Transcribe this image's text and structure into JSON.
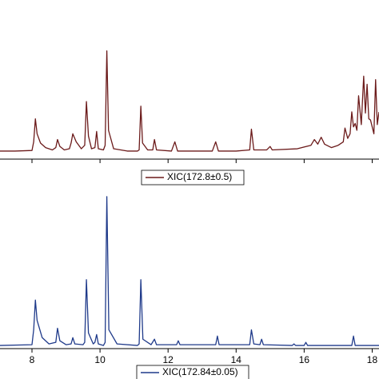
{
  "chart_data": [
    {
      "type": "line",
      "xlim": [
        7.06,
        18.2
      ],
      "ylim": [
        0,
        100
      ],
      "xticks": [
        8,
        10,
        12,
        14,
        16,
        18
      ],
      "tick_labels": false,
      "legend": "bottom",
      "series": [
        {
          "name": "XIC(172.8±0.5)",
          "color": "#6b1a1a",
          "x": [
            7.06,
            7.5,
            8.0,
            8.05,
            8.1,
            8.15,
            8.25,
            8.4,
            8.6,
            8.7,
            8.75,
            8.82,
            8.95,
            9.1,
            9.15,
            9.2,
            9.3,
            9.45,
            9.55,
            9.6,
            9.66,
            9.75,
            9.85,
            9.9,
            9.95,
            10.1,
            10.15,
            10.2,
            10.25,
            10.4,
            10.8,
            11.1,
            11.15,
            11.2,
            11.25,
            11.4,
            11.55,
            11.6,
            11.66,
            12.1,
            12.2,
            12.28,
            13.3,
            13.4,
            13.48,
            14.0,
            14.4,
            14.45,
            14.52,
            14.9,
            15.0,
            15.06,
            15.8,
            16.2,
            16.3,
            16.4,
            16.5,
            16.6,
            16.8,
            17.0,
            17.15,
            17.2,
            17.28,
            17.35,
            17.4,
            17.45,
            17.5,
            17.55,
            17.6,
            17.68,
            17.75,
            17.8,
            17.85,
            17.9,
            17.95,
            18.05,
            18.1,
            18.15,
            18.2
          ],
          "values": [
            7,
            7,
            7.5,
            15,
            35,
            22,
            14,
            10,
            8,
            10,
            17,
            11,
            8,
            9,
            14,
            22,
            15,
            9,
            12,
            50,
            20,
            9,
            10,
            24,
            9,
            8,
            12,
            94,
            25,
            9,
            7,
            7,
            8,
            46,
            14,
            8,
            8,
            17,
            8,
            7,
            15,
            7,
            7,
            15,
            7,
            7,
            8,
            26,
            8,
            8,
            11,
            8,
            9,
            12,
            17,
            13,
            19,
            13,
            10,
            12,
            15,
            27,
            18,
            22,
            41,
            28,
            31,
            25,
            55,
            30,
            72,
            40,
            65,
            35,
            34,
            22,
            69,
            30,
            41
          ]
        }
      ]
    },
    {
      "type": "line",
      "xlim": [
        7.06,
        18.2
      ],
      "ylim": [
        0,
        100
      ],
      "xticks": [
        8,
        10,
        12,
        14,
        16,
        18
      ],
      "tick_labels": true,
      "legend": "bottom",
      "series": [
        {
          "name": "XIC(172.84±0.05)",
          "color": "#1f3a8a",
          "x": [
            7.06,
            8.0,
            8.05,
            8.1,
            8.15,
            8.3,
            8.5,
            8.7,
            8.75,
            8.82,
            9.0,
            9.15,
            9.2,
            9.26,
            9.5,
            9.55,
            9.6,
            9.66,
            9.8,
            9.85,
            9.9,
            9.95,
            10.1,
            10.15,
            10.2,
            10.26,
            10.5,
            11.1,
            11.15,
            11.2,
            11.26,
            11.5,
            11.6,
            11.66,
            12.25,
            12.3,
            12.35,
            13.4,
            13.45,
            13.5,
            14.4,
            14.45,
            14.52,
            14.7,
            14.75,
            14.8,
            15.65,
            15.7,
            15.75,
            16.0,
            16.05,
            16.1,
            17.4,
            17.45,
            17.5,
            18.2
          ],
          "values": [
            2,
            2.5,
            12,
            31,
            18,
            7,
            3,
            4,
            13,
            5,
            2.5,
            3,
            7,
            3,
            2.5,
            4,
            44,
            10,
            3,
            4,
            9,
            3,
            2,
            4,
            97,
            12,
            3,
            2,
            3,
            44,
            6,
            2.5,
            6,
            2.5,
            2.5,
            5,
            2.5,
            2.5,
            8,
            2.5,
            2.5,
            12,
            3,
            2.5,
            6,
            2.5,
            2,
            3,
            2,
            2,
            4,
            2,
            2,
            8,
            2,
            2
          ]
        }
      ]
    }
  ]
}
